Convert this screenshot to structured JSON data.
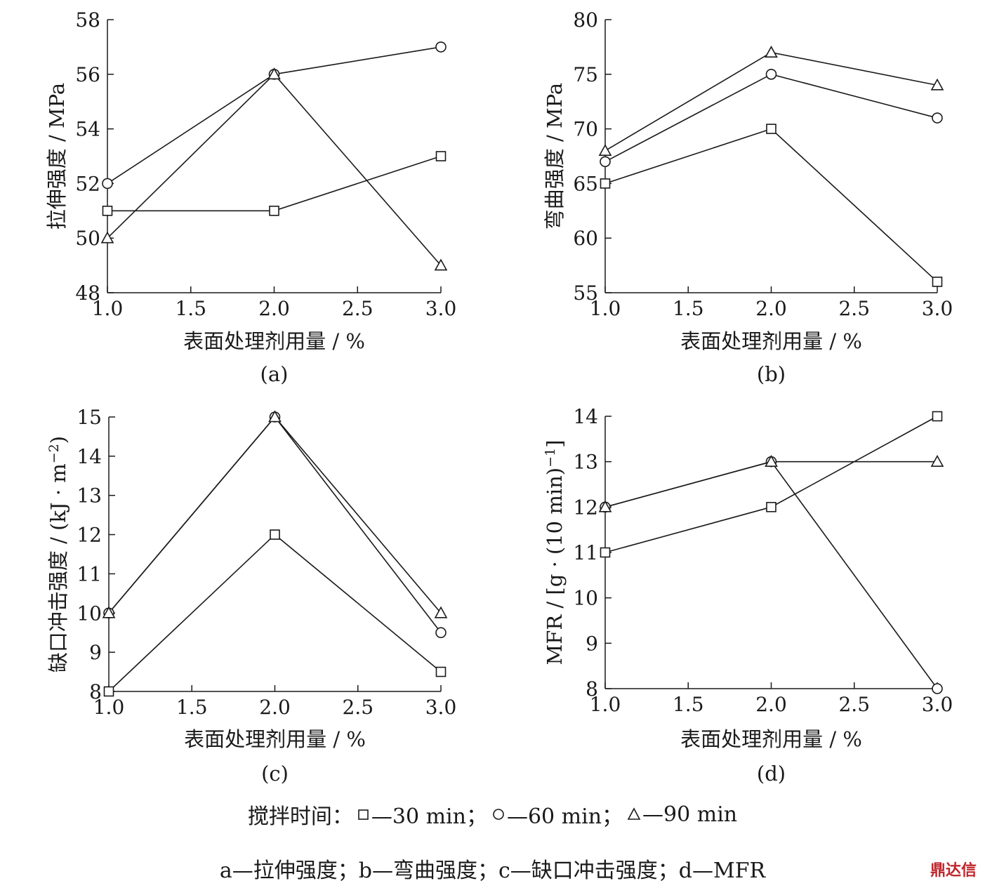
{
  "chart_data": [
    {
      "type": "line",
      "panel_label": "(a)",
      "xlabel": "表面处理剂用量 / %",
      "ylabel": "拉伸强度 / MPa",
      "xlim": [
        1.0,
        3.0
      ],
      "ylim": [
        48,
        58
      ],
      "x_ticks": [
        1.0,
        1.5,
        2.0,
        2.5,
        3.0
      ],
      "x_tick_labels": [
        "1.0",
        "1.5",
        "2.0",
        "2.5",
        "3.0"
      ],
      "y_ticks": [
        48,
        50,
        52,
        54,
        56,
        58
      ],
      "y_tick_labels": [
        "48",
        "50",
        "52",
        "54",
        "56",
        "58"
      ],
      "x": [
        1.0,
        2.0,
        3.0
      ],
      "series": [
        {
          "name": "30 min",
          "marker": "square",
          "values": [
            51,
            51,
            53
          ]
        },
        {
          "name": "60 min",
          "marker": "circle",
          "values": [
            52,
            56,
            57
          ]
        },
        {
          "name": "90 min",
          "marker": "triangle",
          "values": [
            50,
            56,
            49
          ]
        }
      ],
      "grid": false
    },
    {
      "type": "line",
      "panel_label": "(b)",
      "xlabel": "表面处理剂用量 / %",
      "ylabel": "弯曲强度 / MPa",
      "xlim": [
        1.0,
        3.0
      ],
      "ylim": [
        55,
        80
      ],
      "x_ticks": [
        1.0,
        1.5,
        2.0,
        2.5,
        3.0
      ],
      "x_tick_labels": [
        "1.0",
        "1.5",
        "2.0",
        "2.5",
        "3.0"
      ],
      "y_ticks": [
        55,
        60,
        65,
        70,
        75,
        80
      ],
      "y_tick_labels": [
        "55",
        "60",
        "65",
        "70",
        "75",
        "80"
      ],
      "x": [
        1.0,
        2.0,
        3.0
      ],
      "series": [
        {
          "name": "30 min",
          "marker": "square",
          "values": [
            65,
            70,
            56
          ]
        },
        {
          "name": "60 min",
          "marker": "circle",
          "values": [
            67,
            75,
            71
          ]
        },
        {
          "name": "90 min",
          "marker": "triangle",
          "values": [
            68,
            77,
            74
          ]
        }
      ],
      "grid": false
    },
    {
      "type": "line",
      "panel_label": "(c)",
      "xlabel": "表面处理剂用量 / %",
      "ylabel": "缺口冲击强度 / (kJ · m",
      "ylabel_sup": "−2",
      "ylabel_tail": ")",
      "xlim": [
        1.0,
        3.0
      ],
      "ylim": [
        8,
        15
      ],
      "x_ticks": [
        1.0,
        1.5,
        2.0,
        2.5,
        3.0
      ],
      "x_tick_labels": [
        "1.0",
        "1.5",
        "2.0",
        "2.5",
        "3.0"
      ],
      "y_ticks": [
        8,
        9,
        10,
        11,
        12,
        13,
        14,
        15
      ],
      "y_tick_labels": [
        "8",
        "9",
        "10",
        "11",
        "12",
        "13",
        "14",
        "15"
      ],
      "x": [
        1.0,
        2.0,
        3.0
      ],
      "series": [
        {
          "name": "30 min",
          "marker": "square",
          "values": [
            8,
            12,
            8.5
          ]
        },
        {
          "name": "60 min",
          "marker": "circle",
          "values": [
            10,
            15,
            9.5
          ]
        },
        {
          "name": "90 min",
          "marker": "triangle",
          "values": [
            10,
            15,
            10
          ]
        }
      ],
      "grid": false
    },
    {
      "type": "line",
      "panel_label": "(d)",
      "xlabel": "表面处理剂用量 / %",
      "ylabel": "MFR / [g · (10 min)",
      "ylabel_sup": "−1",
      "ylabel_tail": "]",
      "xlim": [
        1.0,
        3.0
      ],
      "ylim": [
        8,
        14
      ],
      "x_ticks": [
        1.0,
        1.5,
        2.0,
        2.5,
        3.0
      ],
      "x_tick_labels": [
        "1.0",
        "1.5",
        "2.0",
        "2.5",
        "3.0"
      ],
      "y_ticks": [
        8,
        9,
        10,
        11,
        12,
        13,
        14
      ],
      "y_tick_labels": [
        "8",
        "9",
        "10",
        "11",
        "12",
        "13",
        "14"
      ],
      "x": [
        1.0,
        2.0,
        3.0
      ],
      "series": [
        {
          "name": "30 min",
          "marker": "square",
          "values": [
            11,
            12,
            14
          ]
        },
        {
          "name": "60 min",
          "marker": "circle",
          "values": [
            12,
            13,
            8
          ]
        },
        {
          "name": "90 min",
          "marker": "triangle",
          "values": [
            12,
            13,
            13
          ]
        }
      ],
      "grid": false
    }
  ],
  "legend": {
    "prefix": "搅拌时间：",
    "items": [
      {
        "marker": "square",
        "text": "—30 min；"
      },
      {
        "marker": "circle",
        "text": "—60 min；"
      },
      {
        "marker": "triangle",
        "text": "—90 min"
      }
    ]
  },
  "caption": "a—拉伸强度；b—弯曲强度；c—缺口冲击强度；d—MFR",
  "watermark": "鼎达信",
  "colors": {
    "ink": "#1a1a1a",
    "marker_fill": "#ffffff",
    "watermark": "#c0252b"
  }
}
